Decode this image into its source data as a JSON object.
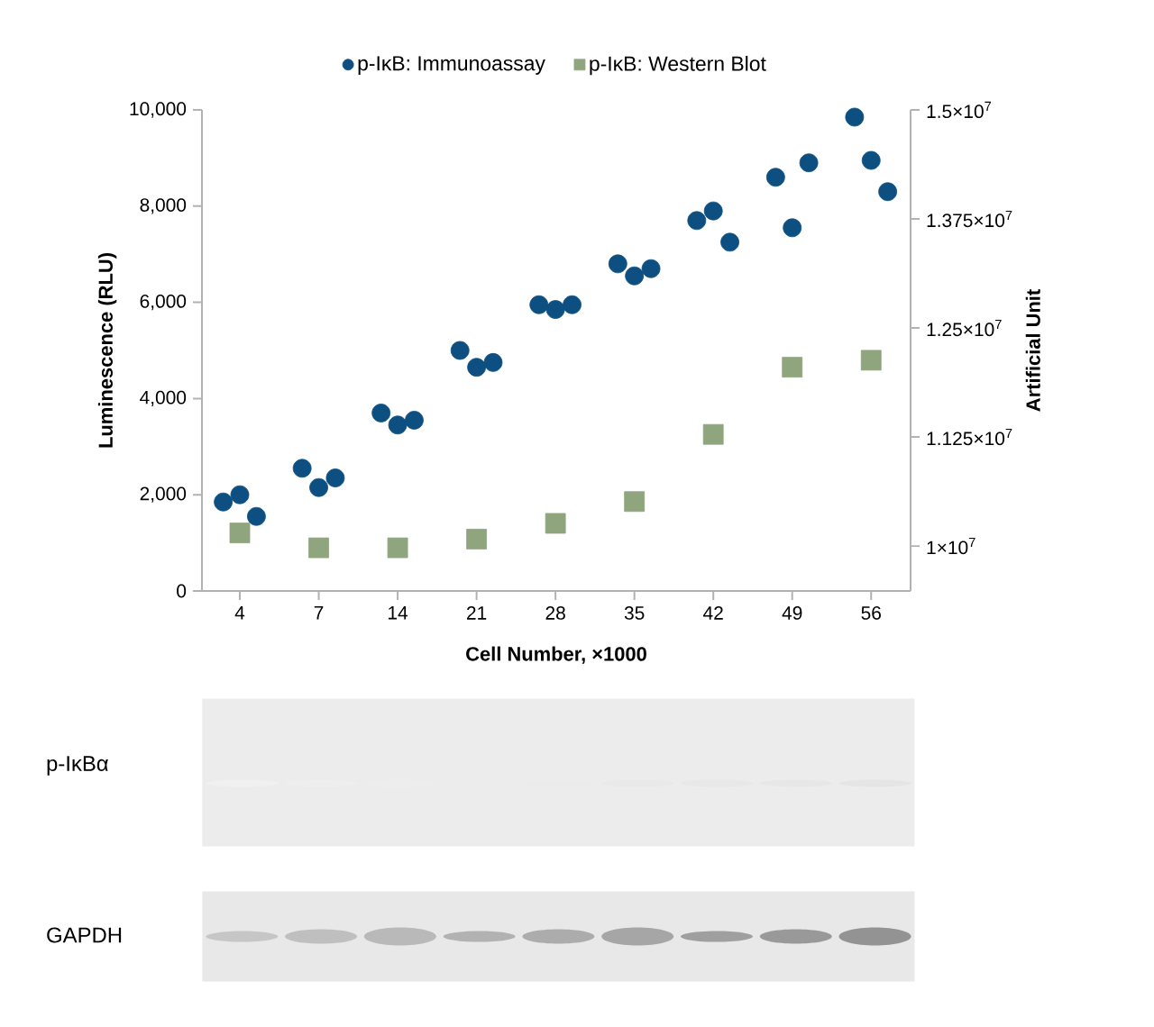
{
  "chart_data": {
    "type": "scatter",
    "xlabel": "Cell Number, ×1000",
    "ylabel": "Luminescence (RLU)",
    "y2label": "Artificial Unit",
    "categories": [
      "4",
      "7",
      "14",
      "21",
      "28",
      "35",
      "42",
      "49",
      "56"
    ],
    "ylim": [
      0,
      10000
    ],
    "yticks": [
      0,
      {
        "value": 2000,
        "label": "2,000"
      },
      {
        "value": 4000,
        "label": "4,000"
      },
      {
        "value": 6000,
        "label": "6,000"
      },
      {
        "value": 8000,
        "label": "8,000"
      },
      {
        "value": 10000,
        "label": "10,000"
      }
    ],
    "y2lim": [
      9485000,
      15000000
    ],
    "y2ticks": [
      {
        "value": 10000000,
        "label": "1×10$^{7}$"
      },
      {
        "value": 11250000,
        "label": "1.125×10$^{7}$"
      },
      {
        "value": 12500000,
        "label": "1.25×10$^{7}$"
      },
      {
        "value": 13750000,
        "label": "1.375×10$^{7}$"
      },
      {
        "value": 15000000,
        "label": "1.5×10$^{7}$"
      }
    ],
    "legend": "top",
    "grid": false,
    "series": [
      {
        "name": "p-IκB: Immunoassay",
        "color": "#0d4f80",
        "marker": "circle",
        "values": [
          1850,
          2550,
          3700,
          5000,
          5950,
          6800,
          7700,
          8600,
          9850
        ]
      },
      {
        "color": "#0d4f80",
        "marker": "circle",
        "values": [
          2000,
          2150,
          3450,
          4650,
          5850,
          6550,
          7900,
          7550,
          8950
        ]
      },
      {
        "color": "#0d4f80",
        "marker": "circle",
        "values": [
          1550,
          2350,
          3550,
          4750,
          5950,
          6700,
          7250,
          8900,
          8300
        ]
      },
      {
        "name": "p-IκB: Western Blot",
        "color": "#8fa57e",
        "marker": "square",
        "axis": "y2",
        "values": [
          10150000,
          9980000,
          9980000,
          10080000,
          10260000,
          10510000,
          11280000,
          12050000,
          12130000
        ]
      }
    ],
    "annotations": [
      "p-IκBα",
      "GAPDH"
    ]
  }
}
